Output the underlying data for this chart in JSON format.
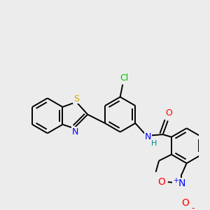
{
  "background_color": "#ececec",
  "bond_color": "#000000",
  "atom_colors": {
    "S": "#ccaa00",
    "N": "#0000ff",
    "O": "#ff0000",
    "Cl": "#00bb00",
    "H": "#008888"
  },
  "figsize": [
    3.0,
    3.0
  ],
  "dpi": 100,
  "bond_lw": 1.4,
  "font_size": 8.5
}
